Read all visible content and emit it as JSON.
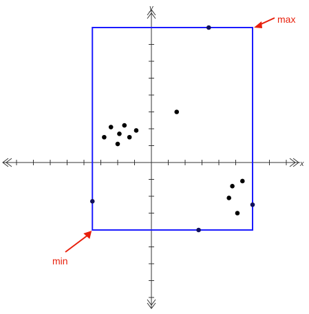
{
  "axes": {
    "x_label": "x",
    "y_label": "y"
  },
  "box": {
    "min": [
      -3.5,
      -4.0
    ],
    "max": [
      6.0,
      8.0
    ],
    "color": "#1a1aff"
  },
  "annotations": {
    "min_label": "min",
    "max_label": "max",
    "color": "#e8200c"
  },
  "points": {
    "cluster_left": [
      [
        -2.8,
        1.5
      ],
      [
        -2.4,
        2.1
      ],
      [
        -1.9,
        1.7
      ],
      [
        -1.6,
        2.2
      ],
      [
        -1.3,
        1.5
      ],
      [
        -2.0,
        1.1
      ],
      [
        -0.9,
        1.9
      ]
    ],
    "cluster_right": [
      [
        4.8,
        -1.4
      ],
      [
        5.4,
        -1.1
      ],
      [
        4.6,
        -2.1
      ],
      [
        5.1,
        -3.0
      ]
    ],
    "middle": [
      [
        1.5,
        3.0
      ]
    ],
    "boundary": [
      [
        3.4,
        8.0
      ],
      [
        -3.5,
        -2.3
      ],
      [
        6.0,
        -2.5
      ],
      [
        2.8,
        -4.0
      ]
    ]
  },
  "colors": {
    "axis": "#333333",
    "point": "#000000",
    "boundary_point": "#11115a"
  }
}
